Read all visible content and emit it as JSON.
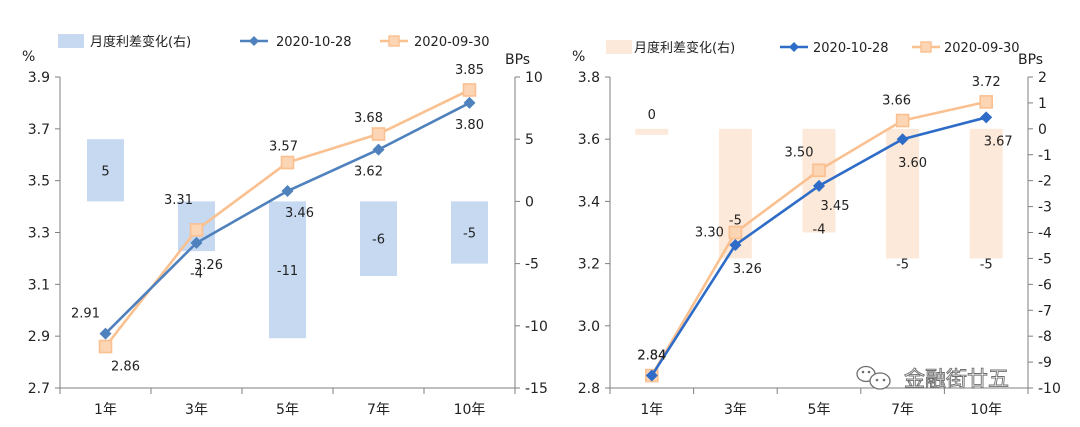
{
  "chart_data": [
    {
      "type": "line",
      "categories": [
        "1年",
        "3年",
        "5年",
        "7年",
        "10年"
      ],
      "y_left": {
        "unit": "%",
        "ylim": [
          2.7,
          3.9
        ],
        "ticks": [
          "2.7",
          "2.9",
          "3.1",
          "3.3",
          "3.5",
          "3.7",
          "3.9"
        ]
      },
      "y_right": {
        "unit": "BPs",
        "ylim": [
          -15,
          10
        ],
        "ticks": [
          "-15",
          "-10",
          "-5",
          "0",
          "5",
          "10"
        ]
      },
      "grid": false,
      "legend_position": "top",
      "series": [
        {
          "name": "月度利差变化(右)",
          "kind": "bar",
          "axis": "right",
          "color": "#c6d9f1",
          "values": [
            5,
            -4,
            -11,
            -6,
            -5
          ],
          "labels": [
            "5",
            "-4",
            "-11",
            "-6",
            "-5"
          ]
        },
        {
          "name": "2020-10-28",
          "kind": "line",
          "axis": "left",
          "color": "#4f81bd",
          "marker": "diamond",
          "values": [
            2.91,
            3.26,
            3.46,
            3.62,
            3.8
          ],
          "labels": [
            "2.91",
            "3.26",
            "3.46",
            "3.62",
            "3.80"
          ]
        },
        {
          "name": "2020-09-30",
          "kind": "line",
          "axis": "left",
          "color": "#fac090",
          "marker": "square",
          "values": [
            2.86,
            3.31,
            3.57,
            3.68,
            3.85
          ],
          "labels": [
            "2.86",
            "3.31",
            "3.57",
            "3.68",
            "3.85"
          ]
        }
      ]
    },
    {
      "type": "line",
      "categories": [
        "1年",
        "3年",
        "5年",
        "7年",
        "10年"
      ],
      "y_left": {
        "unit": "%",
        "ylim": [
          2.8,
          3.8
        ],
        "ticks": [
          "2.8",
          "3.0",
          "3.2",
          "3.4",
          "3.6",
          "3.8"
        ]
      },
      "y_right": {
        "unit": "BPs",
        "ylim": [
          -10,
          2
        ],
        "ticks": [
          "-10",
          "-9",
          "-8",
          "-7",
          "-6",
          "-5",
          "-4",
          "-3",
          "-2",
          "-1",
          "0",
          "1",
          "2"
        ]
      },
      "grid": false,
      "legend_position": "top",
      "series": [
        {
          "name": "月度利差变化(右)",
          "kind": "bar",
          "axis": "right",
          "color": "#fde9d9",
          "values": [
            0,
            -5,
            -4,
            -5,
            -5
          ],
          "labels": [
            "0",
            "-5",
            "-4",
            "-5",
            "-5"
          ]
        },
        {
          "name": "2020-10-28",
          "kind": "line",
          "axis": "left",
          "color": "#2e6cc7",
          "marker": "diamond",
          "values": [
            2.84,
            3.26,
            3.45,
            3.6,
            3.67
          ],
          "labels": [
            "2.84",
            "3.26",
            "3.45",
            "3.60",
            "3.67"
          ]
        },
        {
          "name": "2020-09-30",
          "kind": "line",
          "axis": "left",
          "color": "#fac090",
          "marker": "square",
          "values": [
            2.84,
            3.3,
            3.5,
            3.66,
            3.72
          ],
          "labels": [
            "2.84",
            "3.30",
            "3.50",
            "3.66",
            "3.72"
          ]
        }
      ]
    }
  ],
  "watermark": {
    "text": "金融街廿五",
    "icon": "wechat-icon"
  }
}
